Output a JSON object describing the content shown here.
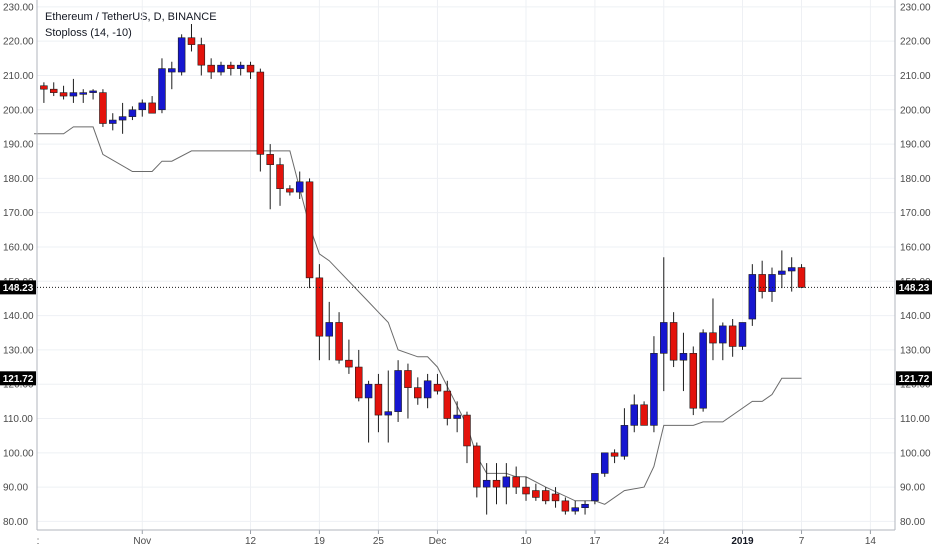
{
  "legend": {
    "symbol_line": "Ethereum / TetherUS, D, BINANCE",
    "indicator_line": "Stoploss (14, -10)"
  },
  "colors": {
    "up_candle": "#1616d0",
    "down_candle": "#e3120b",
    "wick": "#1c1c1c",
    "stoploss_line": "#6b6b6b",
    "grid": "#eef0f4",
    "price_line": "#1c1c1c"
  },
  "chart_data": {
    "type": "candlestick",
    "title": "Ethereum / TetherUS, D, BINANCE",
    "y_ticks": [
      80,
      90,
      100,
      110,
      120,
      130,
      140,
      150,
      160,
      170,
      180,
      190,
      200,
      210,
      220,
      230
    ],
    "y_tick_labels": [
      "80.00",
      "90.00",
      "100.00",
      "110.00",
      "120.00",
      "130.00",
      "140.00",
      "150.00",
      "160.00",
      "170.00",
      "180.00",
      "190.00",
      "200.00",
      "210.00",
      "220.00",
      "230.00"
    ],
    "ylim": [
      77.5,
      232
    ],
    "x_labels": [
      {
        "day": 11,
        "text": "Nov",
        "bold": false
      },
      {
        "day": 22,
        "text": "12",
        "bold": false
      },
      {
        "day": 29,
        "text": "19",
        "bold": false
      },
      {
        "day": 35,
        "text": "25",
        "bold": false
      },
      {
        "day": 41,
        "text": "Dec",
        "bold": false
      },
      {
        "day": 50,
        "text": "10",
        "bold": false
      },
      {
        "day": 57,
        "text": "17",
        "bold": false
      },
      {
        "day": 64,
        "text": "24",
        "bold": false
      },
      {
        "day": 72,
        "text": "2019",
        "bold": true
      },
      {
        "day": 78,
        "text": "7",
        "bold": false
      },
      {
        "day": 85,
        "text": "14",
        "bold": false
      }
    ],
    "first_day_label": ":",
    "xlim_days": [
      0.3,
      87.5
    ],
    "last_price": 148.23,
    "last_price_label": "148.23",
    "stoploss_last": 121.72,
    "stoploss_label": "121.72",
    "candles": [
      {
        "d": 1,
        "o": 207,
        "h": 208,
        "l": 202,
        "c": 206
      },
      {
        "d": 2,
        "o": 206,
        "h": 208,
        "l": 204,
        "c": 205
      },
      {
        "d": 3,
        "o": 205,
        "h": 207,
        "l": 203,
        "c": 204
      },
      {
        "d": 4,
        "o": 204,
        "h": 209,
        "l": 202,
        "c": 205
      },
      {
        "d": 5,
        "o": 204.5,
        "h": 206,
        "l": 202,
        "c": 205
      },
      {
        "d": 6,
        "o": 205,
        "h": 206,
        "l": 203,
        "c": 205.5
      },
      {
        "d": 7,
        "o": 205,
        "h": 206,
        "l": 195,
        "c": 196
      },
      {
        "d": 8,
        "o": 196,
        "h": 199,
        "l": 194,
        "c": 197
      },
      {
        "d": 9,
        "o": 197,
        "h": 202,
        "l": 193,
        "c": 198
      },
      {
        "d": 10,
        "o": 198,
        "h": 201,
        "l": 197,
        "c": 200
      },
      {
        "d": 11,
        "o": 200,
        "h": 203,
        "l": 198,
        "c": 202
      },
      {
        "d": 12,
        "o": 202,
        "h": 204,
        "l": 200,
        "c": 199
      },
      {
        "d": 13,
        "o": 200,
        "h": 215,
        "l": 199,
        "c": 212
      },
      {
        "d": 14,
        "o": 211,
        "h": 214,
        "l": 206,
        "c": 212
      },
      {
        "d": 15,
        "o": 211,
        "h": 222,
        "l": 210,
        "c": 221
      },
      {
        "d": 16,
        "o": 221,
        "h": 225,
        "l": 217,
        "c": 219
      },
      {
        "d": 17,
        "o": 219,
        "h": 221,
        "l": 210,
        "c": 213
      },
      {
        "d": 18,
        "o": 213,
        "h": 215,
        "l": 209,
        "c": 211
      },
      {
        "d": 19,
        "o": 211,
        "h": 214,
        "l": 210,
        "c": 213
      },
      {
        "d": 20,
        "o": 213,
        "h": 214,
        "l": 210,
        "c": 212
      },
      {
        "d": 21,
        "o": 212,
        "h": 214,
        "l": 210,
        "c": 213
      },
      {
        "d": 22,
        "o": 213,
        "h": 214,
        "l": 209,
        "c": 211
      },
      {
        "d": 23,
        "o": 211,
        "h": 212,
        "l": 182,
        "c": 187
      },
      {
        "d": 24,
        "o": 187,
        "h": 190,
        "l": 171,
        "c": 184
      },
      {
        "d": 25,
        "o": 184,
        "h": 186,
        "l": 172,
        "c": 177
      },
      {
        "d": 26,
        "o": 177,
        "h": 178,
        "l": 175,
        "c": 176
      },
      {
        "d": 27,
        "o": 176,
        "h": 182,
        "l": 174,
        "c": 179
      },
      {
        "d": 28,
        "o": 179,
        "h": 180,
        "l": 148,
        "c": 151
      },
      {
        "d": 29,
        "o": 151,
        "h": 155,
        "l": 127,
        "c": 134
      },
      {
        "d": 30,
        "o": 134,
        "h": 144,
        "l": 127,
        "c": 138
      },
      {
        "d": 31,
        "o": 138,
        "h": 141,
        "l": 126,
        "c": 127
      },
      {
        "d": 32,
        "o": 127,
        "h": 133,
        "l": 123,
        "c": 125
      },
      {
        "d": 33,
        "o": 125,
        "h": 130,
        "l": 115,
        "c": 116
      },
      {
        "d": 34,
        "o": 116,
        "h": 121,
        "l": 103,
        "c": 120
      },
      {
        "d": 35,
        "o": 120,
        "h": 123,
        "l": 106,
        "c": 111
      },
      {
        "d": 36,
        "o": 111,
        "h": 124,
        "l": 103,
        "c": 112
      },
      {
        "d": 37,
        "o": 112,
        "h": 127,
        "l": 109,
        "c": 124
      },
      {
        "d": 38,
        "o": 124,
        "h": 126,
        "l": 110,
        "c": 119
      },
      {
        "d": 39,
        "o": 119,
        "h": 122,
        "l": 114,
        "c": 116
      },
      {
        "d": 40,
        "o": 116,
        "h": 123,
        "l": 113,
        "c": 121
      },
      {
        "d": 41,
        "o": 120,
        "h": 123,
        "l": 117,
        "c": 118
      },
      {
        "d": 42,
        "o": 118,
        "h": 121,
        "l": 108,
        "c": 110
      },
      {
        "d": 43,
        "o": 110,
        "h": 115,
        "l": 106,
        "c": 111
      },
      {
        "d": 44,
        "o": 111,
        "h": 112,
        "l": 97,
        "c": 102
      },
      {
        "d": 45,
        "o": 102,
        "h": 103,
        "l": 87,
        "c": 90
      },
      {
        "d": 46,
        "o": 90,
        "h": 97,
        "l": 82,
        "c": 92
      },
      {
        "d": 47,
        "o": 92,
        "h": 97,
        "l": 85,
        "c": 90
      },
      {
        "d": 48,
        "o": 90,
        "h": 97,
        "l": 85,
        "c": 93
      },
      {
        "d": 49,
        "o": 93,
        "h": 96,
        "l": 88,
        "c": 90
      },
      {
        "d": 50,
        "o": 90,
        "h": 93,
        "l": 86,
        "c": 88
      },
      {
        "d": 51,
        "o": 89,
        "h": 91,
        "l": 86,
        "c": 87
      },
      {
        "d": 52,
        "o": 89,
        "h": 90,
        "l": 85,
        "c": 86
      },
      {
        "d": 53,
        "o": 88,
        "h": 90,
        "l": 84,
        "c": 86
      },
      {
        "d": 54,
        "o": 86,
        "h": 87,
        "l": 82,
        "c": 83
      },
      {
        "d": 55,
        "o": 83,
        "h": 86,
        "l": 82,
        "c": 84
      },
      {
        "d": 56,
        "o": 84,
        "h": 86,
        "l": 82,
        "c": 85
      },
      {
        "d": 57,
        "o": 86,
        "h": 94,
        "l": 85,
        "c": 94
      },
      {
        "d": 58,
        "o": 94,
        "h": 100,
        "l": 93,
        "c": 100
      },
      {
        "d": 59,
        "o": 100,
        "h": 101,
        "l": 97,
        "c": 99
      },
      {
        "d": 60,
        "o": 99,
        "h": 113,
        "l": 98,
        "c": 108
      },
      {
        "d": 61,
        "o": 108,
        "h": 117,
        "l": 106,
        "c": 114
      },
      {
        "d": 62,
        "o": 114,
        "h": 115,
        "l": 108,
        "c": 108
      },
      {
        "d": 63,
        "o": 108,
        "h": 134,
        "l": 106,
        "c": 129
      },
      {
        "d": 64,
        "o": 129,
        "h": 157,
        "l": 118,
        "c": 138
      },
      {
        "d": 65,
        "o": 138,
        "h": 141,
        "l": 125,
        "c": 127
      },
      {
        "d": 66,
        "o": 127,
        "h": 135,
        "l": 118,
        "c": 129
      },
      {
        "d": 67,
        "o": 129,
        "h": 131,
        "l": 111,
        "c": 113
      },
      {
        "d": 68,
        "o": 113,
        "h": 136,
        "l": 112,
        "c": 135
      },
      {
        "d": 69,
        "o": 135,
        "h": 145,
        "l": 127,
        "c": 132
      },
      {
        "d": 70,
        "o": 132,
        "h": 138,
        "l": 127,
        "c": 137
      },
      {
        "d": 71,
        "o": 137,
        "h": 139,
        "l": 128,
        "c": 131
      },
      {
        "d": 72,
        "o": 131,
        "h": 138,
        "l": 130,
        "c": 138
      },
      {
        "d": 73,
        "o": 139,
        "h": 155,
        "l": 137,
        "c": 152
      },
      {
        "d": 74,
        "o": 152,
        "h": 156,
        "l": 145,
        "c": 147
      },
      {
        "d": 75,
        "o": 147,
        "h": 154,
        "l": 144,
        "c": 152
      },
      {
        "d": 76,
        "o": 152,
        "h": 159,
        "l": 148,
        "c": 153
      },
      {
        "d": 77,
        "o": 153,
        "h": 157,
        "l": 147,
        "c": 154
      },
      {
        "d": 78,
        "o": 154,
        "h": 155,
        "l": 148,
        "c": 148.23
      }
    ],
    "stoploss": [
      {
        "d": 0,
        "v": 193
      },
      {
        "d": 3,
        "v": 193
      },
      {
        "d": 4,
        "v": 195
      },
      {
        "d": 6,
        "v": 195
      },
      {
        "d": 7,
        "v": 187
      },
      {
        "d": 10,
        "v": 182
      },
      {
        "d": 12,
        "v": 182
      },
      {
        "d": 13,
        "v": 185
      },
      {
        "d": 14,
        "v": 185
      },
      {
        "d": 16,
        "v": 188
      },
      {
        "d": 25,
        "v": 188
      },
      {
        "d": 26,
        "v": 188
      },
      {
        "d": 28,
        "v": 166
      },
      {
        "d": 29,
        "v": 158
      },
      {
        "d": 30,
        "v": 156
      },
      {
        "d": 34,
        "v": 144
      },
      {
        "d": 35,
        "v": 141
      },
      {
        "d": 36,
        "v": 138
      },
      {
        "d": 37,
        "v": 130
      },
      {
        "d": 39,
        "v": 128
      },
      {
        "d": 40,
        "v": 128
      },
      {
        "d": 41,
        "v": 125
      },
      {
        "d": 44,
        "v": 108
      },
      {
        "d": 45,
        "v": 99
      },
      {
        "d": 46,
        "v": 94
      },
      {
        "d": 48,
        "v": 94
      },
      {
        "d": 49,
        "v": 93
      },
      {
        "d": 50,
        "v": 93
      },
      {
        "d": 52,
        "v": 90
      },
      {
        "d": 55,
        "v": 86
      },
      {
        "d": 57,
        "v": 86
      },
      {
        "d": 58,
        "v": 85
      },
      {
        "d": 60,
        "v": 89
      },
      {
        "d": 62,
        "v": 90
      },
      {
        "d": 63,
        "v": 96
      },
      {
        "d": 64,
        "v": 108
      },
      {
        "d": 67,
        "v": 108
      },
      {
        "d": 68,
        "v": 109
      },
      {
        "d": 70,
        "v": 109
      },
      {
        "d": 73,
        "v": 115
      },
      {
        "d": 74,
        "v": 115
      },
      {
        "d": 75,
        "v": 117
      },
      {
        "d": 76,
        "v": 121.72
      },
      {
        "d": 78,
        "v": 121.72
      }
    ]
  }
}
